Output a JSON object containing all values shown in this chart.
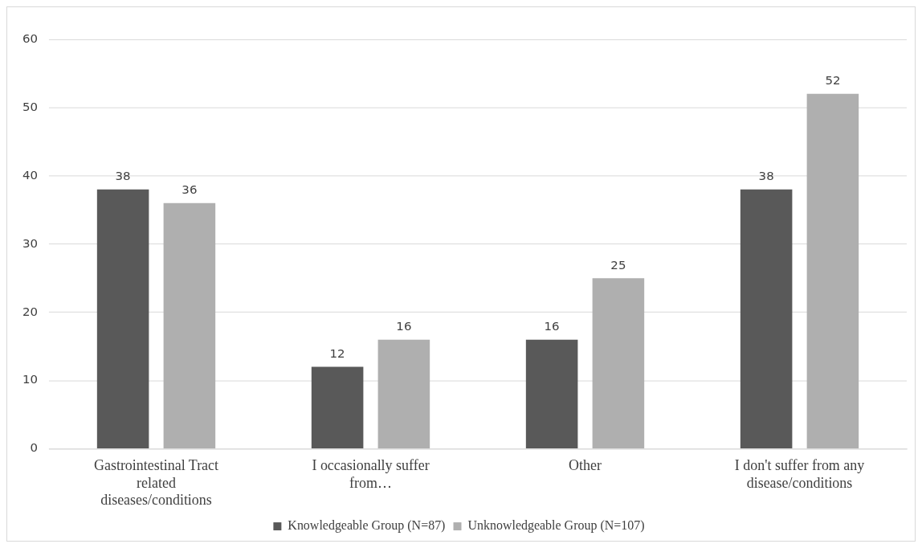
{
  "chart_data": {
    "type": "bar",
    "categories": [
      "Gastrointestinal Tract related diseases/conditions",
      "I occasionally suffer from…",
      "Other",
      "I don't suffer from any disease/conditions"
    ],
    "series": [
      {
        "name": "Knowledgeable Group (N=87)",
        "color": "#595959",
        "values": [
          38,
          12,
          16,
          38
        ]
      },
      {
        "name": "Unknowledgeable Group (N=107)",
        "color": "#afafaf",
        "values": [
          36,
          16,
          25,
          52
        ]
      }
    ],
    "ylim": [
      0,
      60
    ],
    "yticks": [
      0,
      10,
      20,
      30,
      40,
      50,
      60
    ],
    "grid": "y",
    "legend": "bottom",
    "data_labels": true
  }
}
